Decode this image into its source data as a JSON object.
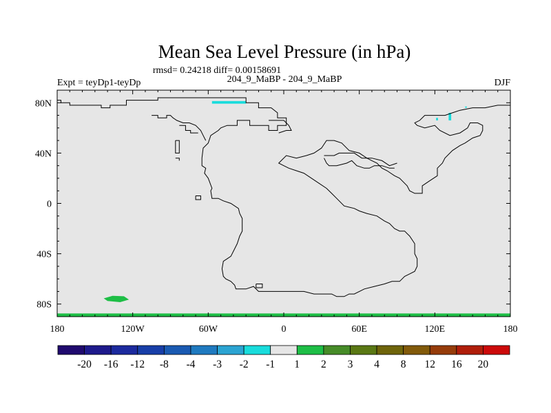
{
  "chart_data": {
    "type": "heatmap",
    "title": "Mean Sea Level Pressure (in hPa)",
    "stats_text": "rmsd= 0.24218 diff= 0.00158691",
    "left_label": "Expt = teyDp1-teyDp",
    "center_label": "204_9_MaBP - 204_9_MaBP",
    "right_label": "DJF",
    "xlim": [
      -180,
      180
    ],
    "ylim": [
      -90,
      90
    ],
    "x_ticks": [
      {
        "value": -180,
        "label": "180"
      },
      {
        "value": -120,
        "label": "120W"
      },
      {
        "value": -60,
        "label": "60W"
      },
      {
        "value": 0,
        "label": "0"
      },
      {
        "value": 60,
        "label": "60E"
      },
      {
        "value": 120,
        "label": "120E"
      },
      {
        "value": 180,
        "label": "180"
      }
    ],
    "y_ticks": [
      {
        "value": 80,
        "label": "80N"
      },
      {
        "value": 40,
        "label": "40N"
      },
      {
        "value": 0,
        "label": "0"
      },
      {
        "value": -40,
        "label": "40S"
      },
      {
        "value": -80,
        "label": "80S"
      }
    ],
    "background_color": "#e6e6e6",
    "colorbar": {
      "colors": [
        "#200a6e",
        "#1e1a8c",
        "#1c2a9e",
        "#183ea8",
        "#1a5ab2",
        "#1f7ac0",
        "#2ba4d2",
        "#19dcdc",
        "#e6e6e6",
        "#1ebe46",
        "#468c28",
        "#5a7814",
        "#6e640a",
        "#825a0a",
        "#963c0a",
        "#b01e0a",
        "#cc0a0a"
      ],
      "labels": [
        "-20",
        "-16",
        "-12",
        "-8",
        "-4",
        "-3",
        "-2",
        "-1",
        "1",
        "2",
        "3",
        "4",
        "8",
        "12",
        "16",
        "20"
      ]
    },
    "anomalies": [
      {
        "color": "#19dcdc",
        "points": [
          [
            -57,
            81.3
          ],
          [
            -30,
            81.3
          ],
          [
            -30,
            79.3
          ],
          [
            -57,
            79.3
          ]
        ]
      },
      {
        "color": "#19dcdc",
        "points": [
          [
            121,
            66
          ],
          [
            122.5,
            66
          ],
          [
            122.5,
            68
          ],
          [
            121,
            68
          ]
        ]
      },
      {
        "color": "#19dcdc",
        "points": [
          [
            131,
            66
          ],
          [
            133,
            66
          ],
          [
            133,
            72
          ],
          [
            131,
            72
          ]
        ]
      },
      {
        "color": "#19dcdc",
        "points": [
          [
            144,
            76
          ],
          [
            145.5,
            76
          ],
          [
            145.5,
            77
          ],
          [
            144,
            77
          ]
        ]
      },
      {
        "color": "#1ebe46",
        "points": [
          [
            -143,
            -75.5
          ],
          [
            -136,
            -73.5
          ],
          [
            -127,
            -73.8
          ],
          [
            -123,
            -76.5
          ],
          [
            -130,
            -78.5
          ],
          [
            -140,
            -77.5
          ]
        ]
      },
      {
        "color": "#1ebe46",
        "points": [
          [
            -180,
            -87.5
          ],
          [
            180,
            -87.5
          ],
          [
            180,
            -90
          ],
          [
            -180,
            -90
          ]
        ]
      }
    ],
    "coastlines": [
      [
        [
          -180,
          82
        ],
        [
          -177,
          82
        ],
        [
          -177,
          80
        ],
        [
          -170,
          80
        ],
        [
          -170,
          78
        ],
        [
          -145,
          78
        ],
        [
          -145,
          76
        ],
        [
          -138,
          76
        ],
        [
          -138,
          78
        ],
        [
          -125,
          78
        ],
        [
          -125,
          82
        ],
        [
          -100,
          82
        ],
        [
          -100,
          84
        ],
        [
          -65,
          84
        ],
        [
          -50,
          84
        ],
        [
          -30,
          84
        ],
        [
          -30,
          80
        ],
        [
          -20,
          80
        ],
        [
          -20,
          76
        ],
        [
          -10,
          76
        ],
        [
          -5,
          72
        ],
        [
          -5,
          68
        ],
        [
          2,
          68
        ],
        [
          2,
          62
        ],
        [
          -5,
          62
        ],
        [
          -5,
          58
        ],
        [
          -12,
          58
        ],
        [
          -12,
          62
        ],
        [
          -22,
          62
        ],
        [
          -27,
          62
        ],
        [
          -27,
          66
        ],
        [
          -37,
          66
        ],
        [
          -37,
          62
        ],
        [
          -45,
          62
        ],
        [
          -50,
          60
        ],
        [
          -52,
          58
        ],
        [
          -58,
          54
        ],
        [
          -60,
          48
        ],
        [
          -64,
          44
        ],
        [
          -65,
          36
        ],
        [
          -65,
          30
        ],
        [
          -62,
          28
        ],
        [
          -63,
          24
        ],
        [
          -60,
          20
        ],
        [
          -57,
          12
        ],
        [
          -58,
          10
        ],
        [
          -57,
          4
        ],
        [
          -52,
          4
        ],
        [
          -48,
          2
        ],
        [
          -42,
          0
        ],
        [
          -36,
          -4
        ],
        [
          -35,
          -8
        ],
        [
          -33,
          -12
        ],
        [
          -33,
          -22
        ],
        [
          -35,
          -26
        ],
        [
          -37,
          -32
        ],
        [
          -40,
          -38
        ],
        [
          -42,
          -42
        ],
        [
          -45,
          -44
        ],
        [
          -48,
          -46
        ],
        [
          -49,
          -52
        ],
        [
          -48,
          -58
        ],
        [
          -46,
          -60
        ],
        [
          -42,
          -62
        ],
        [
          -39,
          -65
        ],
        [
          -38,
          -68
        ],
        [
          -30,
          -68
        ],
        [
          -24,
          -66
        ],
        [
          -20,
          -70
        ],
        [
          -14,
          -70
        ],
        [
          -8,
          -70
        ],
        [
          0,
          -70
        ],
        [
          8,
          -70
        ],
        [
          16,
          -70
        ],
        [
          24,
          -72
        ],
        [
          32,
          -72
        ],
        [
          38,
          -72
        ],
        [
          42,
          -74
        ],
        [
          48,
          -74
        ],
        [
          52,
          -72
        ],
        [
          56,
          -72
        ],
        [
          64,
          -68
        ],
        [
          72,
          -66
        ],
        [
          80,
          -64
        ],
        [
          86,
          -62
        ],
        [
          92,
          -62
        ],
        [
          96,
          -58
        ],
        [
          100,
          -56
        ],
        [
          104,
          -54
        ],
        [
          106,
          -50
        ],
        [
          106,
          -44
        ],
        [
          104,
          -40
        ],
        [
          104,
          -32
        ],
        [
          100,
          -26
        ],
        [
          98,
          -24
        ],
        [
          96,
          -22
        ],
        [
          92,
          -22
        ],
        [
          88,
          -20
        ],
        [
          84,
          -16
        ],
        [
          80,
          -14
        ],
        [
          74,
          -10
        ],
        [
          66,
          -8
        ],
        [
          60,
          -6
        ],
        [
          56,
          -4
        ],
        [
          48,
          -2
        ],
        [
          42,
          4
        ],
        [
          38,
          8
        ],
        [
          34,
          12
        ],
        [
          28,
          16
        ],
        [
          22,
          20
        ],
        [
          16,
          24
        ],
        [
          10,
          26
        ],
        [
          4,
          28
        ],
        [
          0,
          30
        ],
        [
          -4,
          32
        ],
        [
          -2,
          34
        ],
        [
          2,
          38
        ],
        [
          10,
          36
        ],
        [
          18,
          38
        ],
        [
          24,
          40
        ],
        [
          30,
          44
        ],
        [
          34,
          50
        ],
        [
          40,
          50
        ],
        [
          46,
          48
        ],
        [
          52,
          42
        ],
        [
          60,
          40
        ],
        [
          66,
          36
        ],
        [
          70,
          34
        ],
        [
          74,
          32
        ],
        [
          78,
          28
        ],
        [
          82,
          26
        ],
        [
          88,
          22
        ],
        [
          92,
          20
        ],
        [
          98,
          14
        ],
        [
          100,
          10
        ],
        [
          104,
          8
        ],
        [
          110,
          8
        ],
        [
          110,
          14
        ],
        [
          116,
          18
        ],
        [
          122,
          22
        ],
        [
          122,
          28
        ],
        [
          126,
          32
        ],
        [
          128,
          36
        ],
        [
          134,
          42
        ],
        [
          140,
          46
        ],
        [
          144,
          48
        ],
        [
          150,
          52
        ],
        [
          156,
          54
        ],
        [
          158,
          58
        ],
        [
          158,
          62
        ],
        [
          154,
          64
        ],
        [
          148,
          64
        ],
        [
          146,
          60
        ],
        [
          140,
          56
        ],
        [
          132,
          54
        ],
        [
          124,
          58
        ],
        [
          120,
          62
        ],
        [
          112,
          60
        ],
        [
          106,
          62
        ],
        [
          104,
          64
        ],
        [
          108,
          66
        ],
        [
          112,
          70
        ],
        [
          120,
          70
        ],
        [
          128,
          70
        ],
        [
          134,
          72
        ],
        [
          140,
          74
        ],
        [
          150,
          76
        ],
        [
          160,
          76
        ],
        [
          170,
          78
        ],
        [
          180,
          78
        ]
      ],
      [
        [
          -105,
          70
        ],
        [
          -100,
          70
        ],
        [
          -100,
          68
        ],
        [
          -93,
          68
        ],
        [
          -93,
          70
        ],
        [
          -90,
          70
        ],
        [
          -88,
          68
        ],
        [
          -85,
          66
        ],
        [
          -80,
          64
        ],
        [
          -75,
          64
        ],
        [
          -70,
          62
        ],
        [
          -66,
          58
        ],
        [
          -64,
          54
        ],
        [
          -62,
          50
        ]
      ],
      [
        [
          -83,
          62
        ],
        [
          -78,
          62
        ],
        [
          -78,
          58
        ],
        [
          -74,
          58
        ],
        [
          -74,
          56
        ],
        [
          -68,
          56
        ]
      ],
      [
        [
          -86,
          50
        ],
        [
          -83,
          50
        ],
        [
          -83,
          40
        ],
        [
          -86,
          40
        ],
        [
          -86,
          50
        ]
      ],
      [
        [
          -86,
          36
        ],
        [
          -83,
          36
        ],
        [
          -83,
          34
        ]
      ],
      [
        [
          -70,
          6
        ],
        [
          -66,
          6
        ],
        [
          -66,
          3
        ],
        [
          -70,
          3
        ],
        [
          -70,
          6
        ]
      ],
      [
        [
          -22,
          -64
        ],
        [
          -17,
          -64
        ],
        [
          -17,
          -67
        ],
        [
          -22,
          -67
        ],
        [
          -22,
          -64
        ]
      ],
      [
        [
          -12,
          66
        ],
        [
          0,
          66
        ],
        [
          4,
          62
        ],
        [
          6,
          58
        ],
        [
          2,
          58
        ],
        [
          -4,
          56
        ]
      ],
      [
        [
          32,
          38
        ],
        [
          40,
          38
        ],
        [
          44,
          40
        ],
        [
          50,
          40
        ],
        [
          56,
          40
        ],
        [
          62,
          36
        ],
        [
          70,
          36
        ],
        [
          78,
          34
        ],
        [
          84,
          30
        ],
        [
          90,
          32
        ]
      ],
      [
        [
          32,
          36
        ],
        [
          34,
          32
        ],
        [
          36,
          30
        ],
        [
          42,
          30
        ],
        [
          50,
          32
        ],
        [
          54,
          34
        ],
        [
          58,
          30
        ],
        [
          64,
          28
        ],
        [
          68,
          28
        ],
        [
          72,
          30
        ],
        [
          78,
          30
        ],
        [
          84,
          28
        ],
        [
          88,
          28
        ]
      ]
    ]
  }
}
